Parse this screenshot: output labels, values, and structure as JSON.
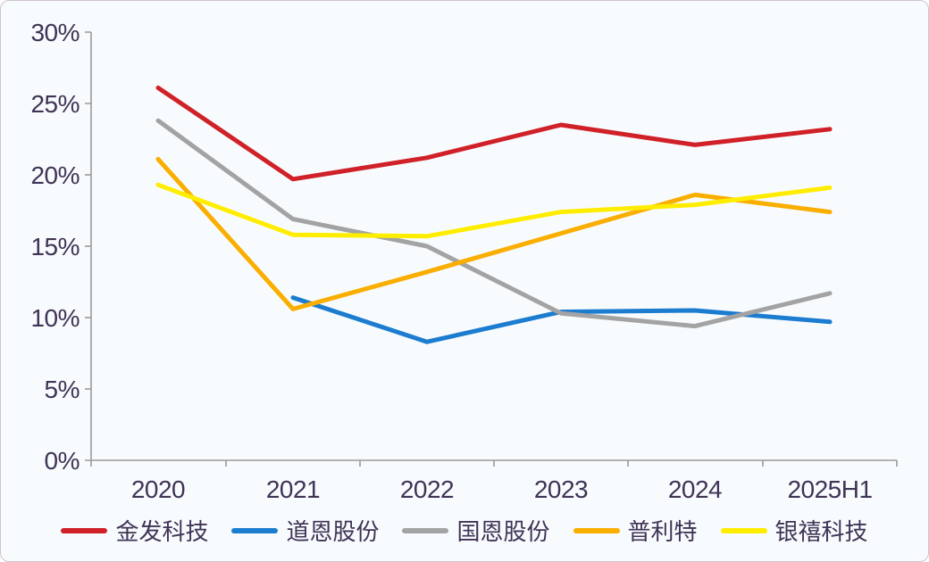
{
  "chart_data": {
    "type": "line",
    "title": "",
    "x_categories": [
      "2020",
      "2021",
      "2022",
      "2023",
      "2024",
      "2025H1"
    ],
    "y_axis": {
      "min": 0,
      "max": 30,
      "step": 5,
      "unit": "%",
      "tick_labels": [
        "0%",
        "5%",
        "10%",
        "15%",
        "20%",
        "25%",
        "30%"
      ]
    },
    "grid": false,
    "legend_position": "bottom",
    "series": [
      {
        "name": "金发科技",
        "color": "#d02128",
        "values": [
          26.1,
          19.7,
          21.2,
          23.5,
          22.1,
          23.2
        ]
      },
      {
        "name": "道恩股份",
        "color": "#1b7cd0",
        "values": [
          null,
          11.4,
          8.3,
          10.4,
          10.5,
          9.7
        ]
      },
      {
        "name": "国恩股份",
        "color": "#a3a3a3",
        "values": [
          23.8,
          16.9,
          15.0,
          10.3,
          9.4,
          11.7
        ]
      },
      {
        "name": "普利特",
        "color": "#f9ae00",
        "values": [
          21.1,
          10.6,
          13.2,
          15.9,
          18.6,
          17.4
        ]
      },
      {
        "name": "银禧科技",
        "color": "#ffed00",
        "values": [
          19.3,
          15.8,
          15.7,
          17.4,
          17.9,
          19.1
        ]
      }
    ],
    "colors": {
      "axis": "#9a9a9a",
      "tick_text": "#3f3356",
      "background": "#f8fbfd"
    }
  }
}
